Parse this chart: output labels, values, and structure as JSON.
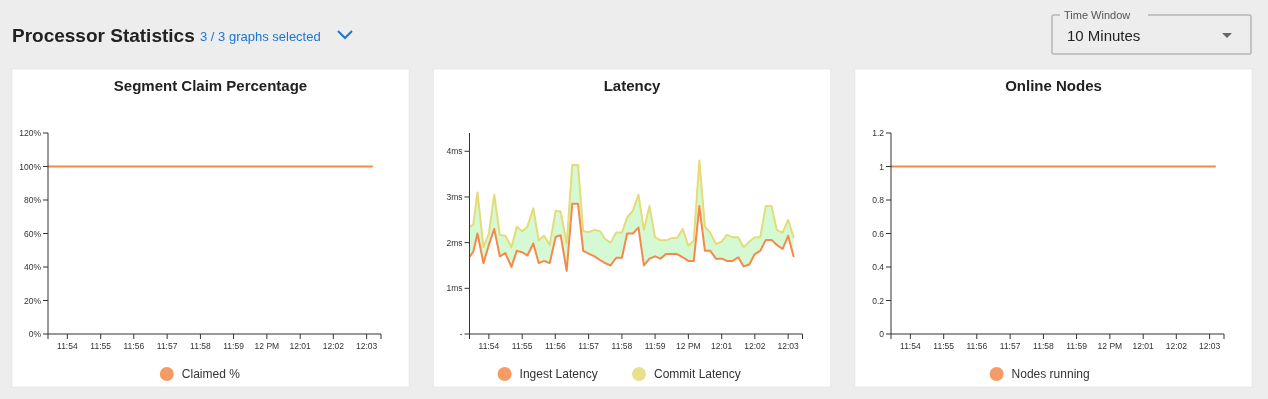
{
  "chart_data": [
    {
      "type": "other",
      "title": "Processor Statistics",
      "annotations": [
        "3 / 3 graphs selected",
        "Time Window",
        "10 Minutes"
      ]
    },
    {
      "type": "line",
      "title": "Segment Claim Percentage",
      "legend": "bottom",
      "xlim": [
        11.8903,
        12.0572
      ],
      "xticks": [
        {
          "value": 11.9,
          "label": "11:54"
        },
        {
          "value": 11.9167,
          "label": "11:55"
        },
        {
          "value": 11.9333,
          "label": "11:56"
        },
        {
          "value": 11.95,
          "label": "11:57"
        },
        {
          "value": 11.9667,
          "label": "11:58"
        },
        {
          "value": 11.9833,
          "label": "11:59"
        },
        {
          "value": 12.0,
          "label": "12 PM"
        },
        {
          "value": 12.0167,
          "label": "12:01"
        },
        {
          "value": 12.0333,
          "label": "12:02"
        },
        {
          "value": 12.05,
          "label": "12:03"
        }
      ],
      "ylim": [
        0,
        120
      ],
      "yticks": [
        {
          "value": 0,
          "label": "0%"
        },
        {
          "value": 20,
          "label": "20%"
        },
        {
          "value": 40,
          "label": "40%"
        },
        {
          "value": 60,
          "label": "60%"
        },
        {
          "value": 80,
          "label": "80%"
        },
        {
          "value": 100,
          "label": "100%"
        },
        {
          "value": 120,
          "label": "120%"
        }
      ],
      "x": [
        11.8905,
        12.0527
      ],
      "series": [
        {
          "name": "Claimed %",
          "color": "#f5894b",
          "values": [
            100,
            100
          ]
        }
      ]
    },
    {
      "type": "line",
      "title": "Latency",
      "legend": "bottom",
      "xlim": [
        11.8903,
        12.0572
      ],
      "xticks": [
        {
          "value": 11.9,
          "label": "11:54"
        },
        {
          "value": 11.9167,
          "label": "11:55"
        },
        {
          "value": 11.9333,
          "label": "11:56"
        },
        {
          "value": 11.95,
          "label": "11:57"
        },
        {
          "value": 11.9667,
          "label": "11:58"
        },
        {
          "value": 11.9833,
          "label": "11:59"
        },
        {
          "value": 12.0,
          "label": "12 PM"
        },
        {
          "value": 12.0167,
          "label": "12:01"
        },
        {
          "value": 12.0333,
          "label": "12:02"
        },
        {
          "value": 12.05,
          "label": "12:03"
        }
      ],
      "ylim": [
        0,
        4.4
      ],
      "yticks": [
        {
          "value": 0,
          "label": "-"
        },
        {
          "value": 1,
          "label": "1ms"
        },
        {
          "value": 2,
          "label": "2ms"
        },
        {
          "value": 3,
          "label": "3ms"
        },
        {
          "value": 4,
          "label": "4ms"
        }
      ],
      "x": [
        11.8905,
        11.8922,
        11.8943,
        11.8973,
        11.9,
        11.9027,
        11.9055,
        11.9083,
        11.9113,
        11.914,
        11.9167,
        11.9193,
        11.9223,
        11.925,
        11.9277,
        11.9305,
        11.9335,
        11.936,
        11.939,
        11.9418,
        11.9447,
        11.9473,
        11.95,
        11.953,
        11.9557,
        11.9583,
        11.961,
        11.9638,
        11.9667,
        11.9693,
        11.9722,
        11.975,
        11.9777,
        11.9805,
        11.9833,
        11.986,
        11.9888,
        11.9917,
        11.9943,
        11.9972,
        12.0,
        12.0027,
        12.0055,
        12.0083,
        12.011,
        12.0138,
        12.0167,
        12.0193,
        12.0222,
        12.025,
        12.0277,
        12.0305,
        12.0333,
        12.036,
        12.0388,
        12.0417,
        12.0443,
        12.0472,
        12.05,
        12.0527
      ],
      "series": [
        {
          "name": "Ingest Latency",
          "color": "#f5894b",
          "values": [
            1.7,
            1.8,
            2.2,
            1.55,
            1.95,
            2.3,
            1.7,
            1.77,
            1.47,
            1.82,
            1.79,
            1.72,
            1.98,
            1.55,
            1.6,
            1.55,
            2.13,
            2.16,
            1.38,
            2.85,
            2.85,
            1.82,
            1.76,
            1.7,
            1.62,
            1.55,
            1.5,
            1.67,
            1.67,
            2.2,
            2.2,
            2.33,
            1.5,
            1.65,
            1.7,
            1.65,
            1.75,
            1.75,
            1.75,
            1.68,
            1.6,
            1.6,
            2.8,
            1.82,
            1.82,
            1.65,
            1.65,
            1.6,
            1.6,
            1.68,
            1.48,
            1.52,
            1.75,
            1.82,
            2.06,
            2.06,
            1.95,
            1.86,
            2.15,
            1.7
          ]
        },
        {
          "name": "Commit Latency",
          "color": "#e3dc78",
          "values": [
            2.35,
            2.4,
            3.1,
            1.9,
            2.2,
            3.05,
            2.17,
            2.15,
            1.9,
            2.35,
            2.25,
            2.35,
            2.75,
            2.05,
            2.15,
            1.95,
            2.7,
            2.68,
            1.98,
            3.7,
            3.7,
            2.25,
            2.23,
            2.28,
            2.25,
            2.08,
            2.0,
            2.22,
            2.22,
            2.55,
            2.7,
            3.05,
            2.28,
            2.8,
            2.12,
            2.05,
            2.05,
            2.1,
            2.1,
            2.3,
            1.93,
            2.05,
            3.8,
            2.35,
            2.22,
            1.97,
            2.02,
            2.17,
            2.12,
            2.12,
            1.9,
            2.02,
            2.12,
            2.12,
            2.8,
            2.8,
            2.28,
            2.22,
            2.5,
            2.12
          ],
          "lower": [
            1.7,
            1.8,
            2.2,
            1.55,
            1.95,
            2.3,
            1.7,
            1.77,
            1.47,
            1.82,
            1.79,
            1.72,
            1.98,
            1.55,
            1.6,
            1.55,
            2.13,
            2.16,
            1.38,
            2.85,
            2.85,
            1.82,
            1.76,
            1.7,
            1.62,
            1.55,
            1.5,
            1.67,
            1.67,
            2.2,
            2.2,
            2.33,
            1.5,
            1.65,
            1.7,
            1.65,
            1.75,
            1.75,
            1.75,
            1.68,
            1.6,
            1.6,
            2.8,
            1.82,
            1.82,
            1.65,
            1.65,
            1.6,
            1.6,
            1.68,
            1.48,
            1.52,
            1.75,
            1.82,
            2.06,
            2.06,
            1.95,
            1.86,
            2.15,
            1.7
          ],
          "upper": [
            2.35,
            2.4,
            3.1,
            1.9,
            2.2,
            3.05,
            2.17,
            2.15,
            1.9,
            2.35,
            2.25,
            2.35,
            2.75,
            2.05,
            2.15,
            1.95,
            2.7,
            2.68,
            1.98,
            3.7,
            3.7,
            2.25,
            2.23,
            2.28,
            2.25,
            2.08,
            2.0,
            2.22,
            2.22,
            2.55,
            2.7,
            3.05,
            2.28,
            2.8,
            2.12,
            2.05,
            2.05,
            2.1,
            2.1,
            2.3,
            1.93,
            2.05,
            3.8,
            2.35,
            2.22,
            1.97,
            2.02,
            2.17,
            2.12,
            2.12,
            1.9,
            2.02,
            2.12,
            2.12,
            2.8,
            2.8,
            2.28,
            2.22,
            2.5,
            2.12
          ]
        }
      ]
    },
    {
      "type": "line",
      "title": "Online Nodes",
      "legend": "bottom",
      "xlim": [
        11.8903,
        12.0572
      ],
      "xticks": [
        {
          "value": 11.9,
          "label": "11:54"
        },
        {
          "value": 11.9167,
          "label": "11:55"
        },
        {
          "value": 11.9333,
          "label": "11:56"
        },
        {
          "value": 11.95,
          "label": "11:57"
        },
        {
          "value": 11.9667,
          "label": "11:58"
        },
        {
          "value": 11.9833,
          "label": "11:59"
        },
        {
          "value": 12.0,
          "label": "12 PM"
        },
        {
          "value": 12.0167,
          "label": "12:01"
        },
        {
          "value": 12.0333,
          "label": "12:02"
        },
        {
          "value": 12.05,
          "label": "12:03"
        }
      ],
      "ylim": [
        0,
        1.2
      ],
      "yticks": [
        0,
        0.2,
        0.4,
        0.6,
        0.8,
        1,
        1.2
      ],
      "x": [
        11.8905,
        12.0527
      ],
      "series": [
        {
          "name": "Nodes running",
          "color": "#f5894b",
          "values": [
            1,
            1
          ]
        }
      ]
    }
  ]
}
